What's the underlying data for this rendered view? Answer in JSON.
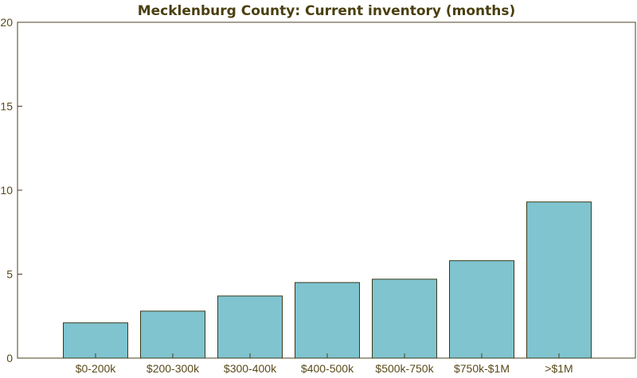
{
  "chart_data": {
    "type": "bar",
    "title": "Mecklenburg County: Current inventory (months)",
    "xlabel": "",
    "ylabel": "",
    "categories": [
      "$0-200k",
      "$200-300k",
      "$300-400k",
      "$400-500k",
      "$500k-750k",
      "$750k-$1M",
      ">$1M"
    ],
    "values": [
      2.1,
      2.8,
      3.7,
      4.5,
      4.7,
      5.8,
      9.3
    ],
    "ylim": [
      0,
      20
    ],
    "yticks": [
      "0",
      "5",
      "10",
      "15",
      "20"
    ],
    "grid": false,
    "colors": {
      "bar": "#7fc4cf",
      "bar_stroke": "#3a3a1a",
      "axis": "#4a4020",
      "title": "#4a3f10"
    }
  }
}
